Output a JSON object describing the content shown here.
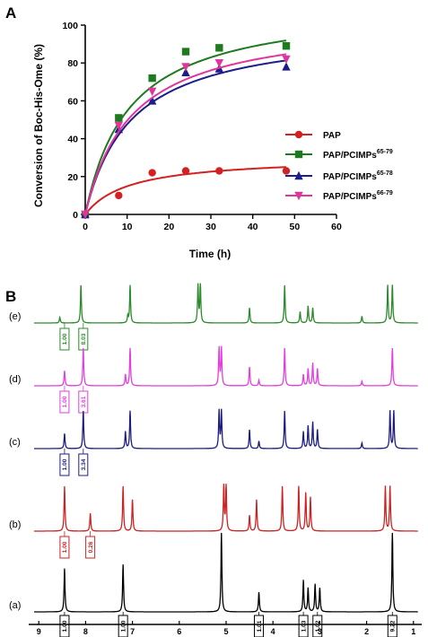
{
  "panels": {
    "a_label": "A",
    "b_label": "B"
  },
  "chart_data": [
    {
      "type": "scatter",
      "xlabel": "Time (h)",
      "ylabel": "Conversion of Boc-His-Ome (%)",
      "xlim": [
        0,
        60
      ],
      "ylim": [
        0,
        100
      ],
      "xticks": [
        "0",
        "10",
        "20",
        "30",
        "40",
        "50",
        "60"
      ],
      "yticks": [
        "0",
        "20",
        "40",
        "60",
        "80",
        "100"
      ],
      "legend_position": "right",
      "series": [
        {
          "name": "PAP",
          "sup": "",
          "color": "#d42020",
          "marker": "circle",
          "x": [
            0,
            8,
            16,
            24,
            32,
            48
          ],
          "y": [
            0,
            10,
            22,
            23,
            23,
            23
          ],
          "fit_max": 30.5,
          "fit_k": 10.5
        },
        {
          "name": "PAP/PCIMPs",
          "sup": "65-79",
          "color": "#1e7a1e",
          "marker": "square",
          "x": [
            0,
            8,
            16,
            24,
            32,
            48
          ],
          "y": [
            0,
            51,
            72,
            86,
            88,
            89
          ],
          "fit_max": 112,
          "fit_k": 10.5
        },
        {
          "name": "PAP/PCIMPs",
          "sup": "65-78",
          "color": "#1c1c8c",
          "marker": "triangle-up",
          "x": [
            0,
            8,
            16,
            24,
            32,
            48
          ],
          "y": [
            0,
            45,
            60,
            75,
            77,
            78
          ],
          "fit_max": 100,
          "fit_k": 11
        },
        {
          "name": "PAP/PCIMPs",
          "sup": "66-79",
          "color": "#e0359a",
          "marker": "triangle-down",
          "x": [
            0,
            8,
            16,
            24,
            32,
            48
          ],
          "y": [
            0,
            47,
            65,
            78,
            80,
            82
          ],
          "fit_max": 104,
          "fit_k": 11
        }
      ]
    },
    {
      "type": "line",
      "title": "",
      "xlabel": "",
      "xlim": [
        9.1,
        0.9
      ],
      "x_reversed": true,
      "xticks": [
        "9",
        "8",
        "7",
        "6",
        "5",
        "4",
        "3",
        "2",
        "1"
      ],
      "traces": [
        {
          "label": "(e)",
          "color": "#2b8a2b",
          "peaks": [
            [
              8.55,
              0.15
            ],
            [
              8.1,
              1.0
            ],
            [
              7.1,
              0.18
            ],
            [
              7.05,
              1.0
            ],
            [
              5.6,
              1.0
            ],
            [
              5.55,
              1.0
            ],
            [
              4.5,
              0.4
            ],
            [
              3.75,
              1.0
            ],
            [
              3.42,
              0.3
            ],
            [
              3.25,
              0.45
            ],
            [
              3.15,
              0.4
            ],
            [
              2.1,
              0.18
            ],
            [
              1.55,
              1.0
            ],
            [
              1.45,
              1.0
            ]
          ],
          "integrals": [
            "1.00",
            "8.03"
          ]
        },
        {
          "label": "(d)",
          "color": "#e23ee0",
          "peaks": [
            [
              8.45,
              0.4
            ],
            [
              8.05,
              1.0
            ],
            [
              7.15,
              0.3
            ],
            [
              7.05,
              1.0
            ],
            [
              5.15,
              1.0
            ],
            [
              5.1,
              1.0
            ],
            [
              4.5,
              0.5
            ],
            [
              4.3,
              0.15
            ],
            [
              3.75,
              1.0
            ],
            [
              3.35,
              0.3
            ],
            [
              3.25,
              0.45
            ],
            [
              3.15,
              0.6
            ],
            [
              3.05,
              0.45
            ],
            [
              2.1,
              0.12
            ],
            [
              1.45,
              1.0
            ]
          ],
          "integrals": [
            "1.00",
            "3.61"
          ]
        },
        {
          "label": "(c)",
          "color": "#1d1d80",
          "peaks": [
            [
              8.45,
              0.4
            ],
            [
              8.05,
              1.0
            ],
            [
              7.15,
              0.45
            ],
            [
              7.05,
              1.0
            ],
            [
              5.15,
              1.0
            ],
            [
              5.1,
              1.0
            ],
            [
              4.5,
              0.5
            ],
            [
              4.3,
              0.2
            ],
            [
              3.75,
              1.0
            ],
            [
              3.35,
              0.45
            ],
            [
              3.25,
              0.6
            ],
            [
              3.15,
              0.7
            ],
            [
              3.05,
              0.5
            ],
            [
              2.1,
              0.15
            ],
            [
              1.5,
              1.0
            ],
            [
              1.42,
              1.0
            ]
          ],
          "integrals": [
            "1.00",
            "3.34"
          ]
        },
        {
          "label": "(b)",
          "color": "#cc2222",
          "peaks": [
            [
              8.45,
              1.0
            ],
            [
              7.9,
              0.4
            ],
            [
              7.2,
              1.0
            ],
            [
              7.0,
              0.7
            ],
            [
              5.05,
              1.0
            ],
            [
              5.0,
              1.0
            ],
            [
              4.5,
              0.35
            ],
            [
              4.35,
              0.7
            ],
            [
              3.8,
              1.0
            ],
            [
              3.45,
              1.0
            ],
            [
              3.3,
              0.85
            ],
            [
              3.2,
              0.75
            ],
            [
              1.6,
              1.0
            ],
            [
              1.5,
              1.0
            ]
          ],
          "integrals": [
            "1.00",
            "0.26"
          ]
        },
        {
          "label": "(a)",
          "color": "#000000",
          "peaks": [
            [
              8.45,
              0.55
            ],
            [
              7.2,
              0.6
            ],
            [
              5.1,
              1.0
            ],
            [
              4.3,
              0.25
            ],
            [
              3.35,
              0.4
            ],
            [
              3.25,
              0.3
            ],
            [
              3.1,
              0.35
            ],
            [
              3.0,
              0.3
            ],
            [
              1.45,
              1.0
            ]
          ],
          "integrals": [
            "1.00",
            "1.00",
            "1.01",
            "1.03",
            "1.02",
            "9.22"
          ]
        }
      ]
    }
  ]
}
